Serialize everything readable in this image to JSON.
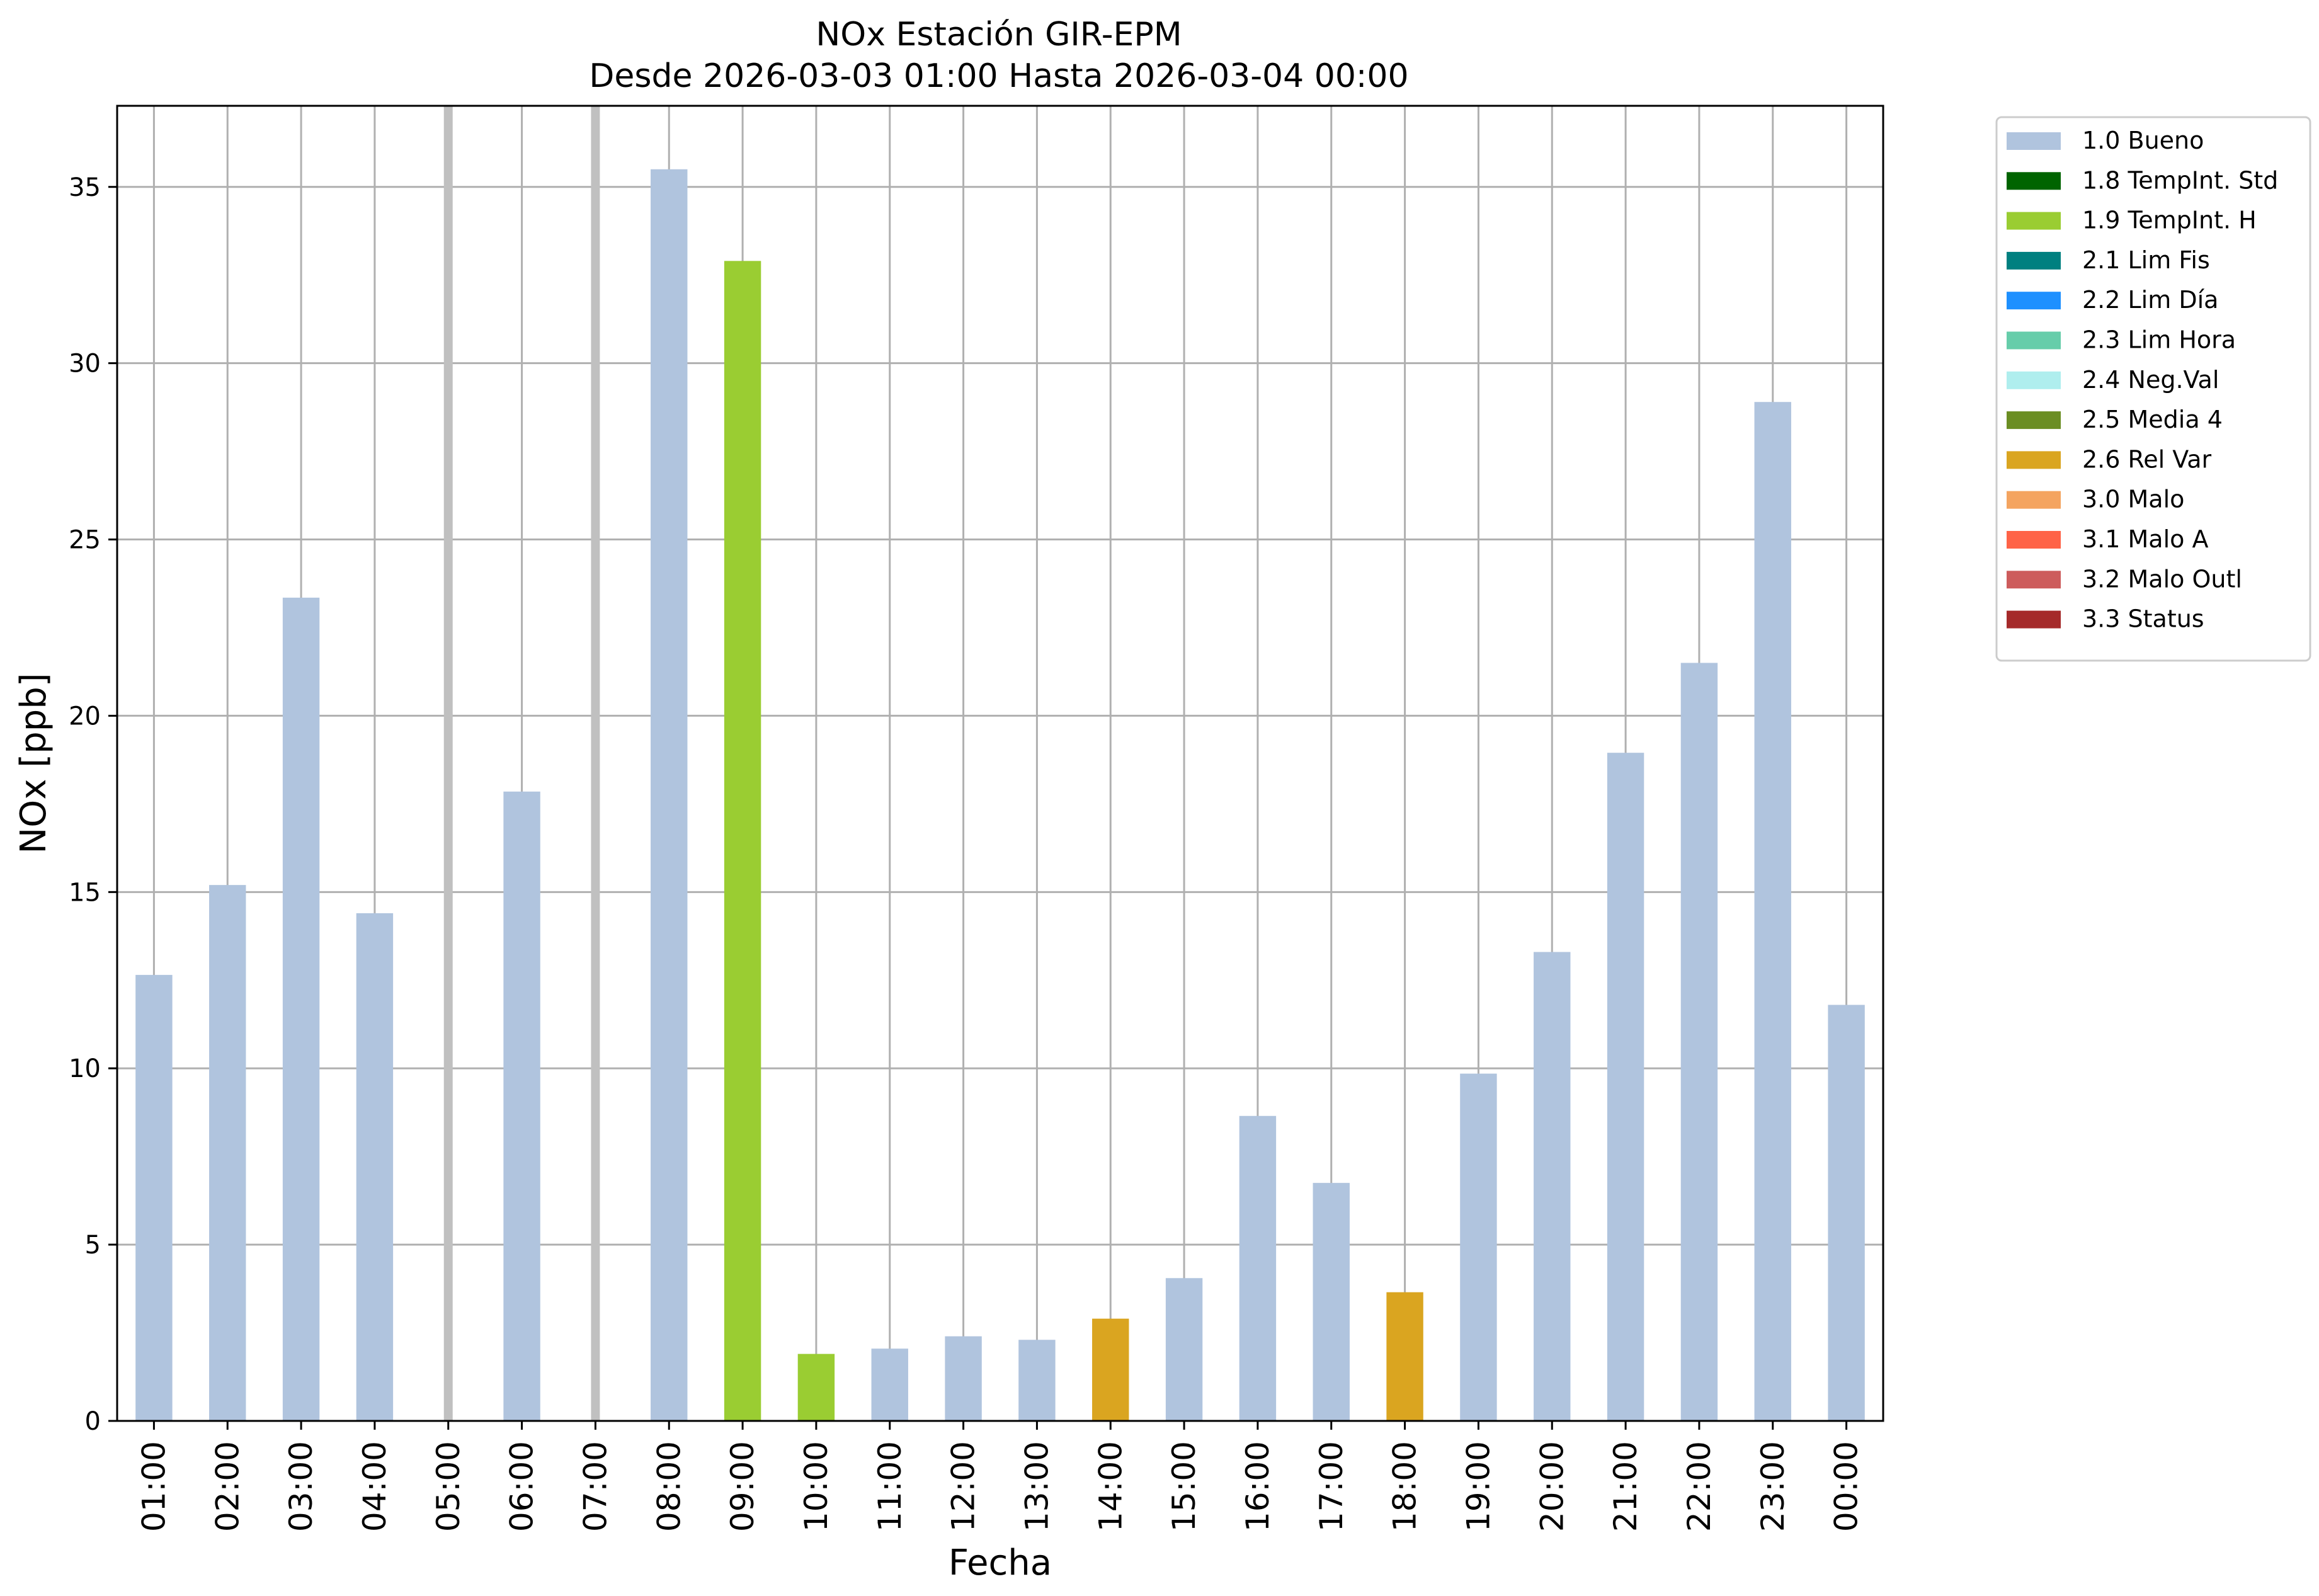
{
  "chart_data": {
    "type": "bar",
    "title": "NOx Estación GIR-EPM",
    "subtitle": "Desde 2026-03-03 01:00 Hasta 2026-03-04 00:00",
    "xlabel": "Fecha",
    "ylabel": "NOx [ppb]",
    "ylim": [
      0,
      37.3
    ],
    "yticks": [
      0,
      5,
      10,
      15,
      20,
      25,
      30,
      35
    ],
    "grid": true,
    "legend_position": "outside-top-right",
    "categories": [
      "01:00",
      "02:00",
      "03:00",
      "04:00",
      "05:00",
      "06:00",
      "07:00",
      "08:00",
      "09:00",
      "10:00",
      "11:00",
      "12:00",
      "13:00",
      "14:00",
      "15:00",
      "16:00",
      "17:00",
      "18:00",
      "19:00",
      "20:00",
      "21:00",
      "22:00",
      "23:00",
      "00:00"
    ],
    "values": [
      12.65,
      15.2,
      23.35,
      14.4,
      null,
      17.85,
      null,
      35.5,
      32.9,
      1.9,
      2.05,
      2.4,
      2.3,
      2.9,
      4.05,
      8.65,
      6.75,
      3.65,
      9.85,
      13.3,
      18.95,
      21.5,
      28.9,
      11.8
    ],
    "flags": [
      "1.0 Bueno",
      "1.0 Bueno",
      "1.0 Bueno",
      "1.0 Bueno",
      null,
      "1.0 Bueno",
      null,
      "1.0 Bueno",
      "1.9 TempInt. H",
      "1.9 TempInt. H",
      "1.0 Bueno",
      "1.0 Bueno",
      "1.0 Bueno",
      "2.6 Rel Var",
      "1.0 Bueno",
      "1.0 Bueno",
      "1.0 Bueno",
      "2.6 Rel Var",
      "1.0 Bueno",
      "1.0 Bueno",
      "1.0 Bueno",
      "1.0 Bueno",
      "1.0 Bueno",
      "1.0 Bueno"
    ],
    "missing_markers": [
      "05:00",
      "07:00"
    ],
    "missing_marker_color": "#c0c0c0",
    "legend": [
      {
        "label": "1.0 Bueno",
        "color": "#b0c4de"
      },
      {
        "label": "1.8 TempInt. Std",
        "color": "#006400"
      },
      {
        "label": "1.9 TempInt. H",
        "color": "#9acd32"
      },
      {
        "label": "2.1 Lim Fis",
        "color": "#008080"
      },
      {
        "label": "2.2 Lim Día",
        "color": "#1e90ff"
      },
      {
        "label": "2.3 Lim Hora",
        "color": "#66cdaa"
      },
      {
        "label": "2.4 Neg.Val",
        "color": "#afeeee"
      },
      {
        "label": "2.5 Media 4",
        "color": "#6b8e23"
      },
      {
        "label": "2.6 Rel Var",
        "color": "#daa520"
      },
      {
        "label": "3.0 Malo",
        "color": "#f4a460"
      },
      {
        "label": "3.1 Malo A",
        "color": "#ff6347"
      },
      {
        "label": "3.2 Malo Outl",
        "color": "#cd5c5c"
      },
      {
        "label": "3.3 Status",
        "color": "#a52a2a"
      }
    ]
  }
}
